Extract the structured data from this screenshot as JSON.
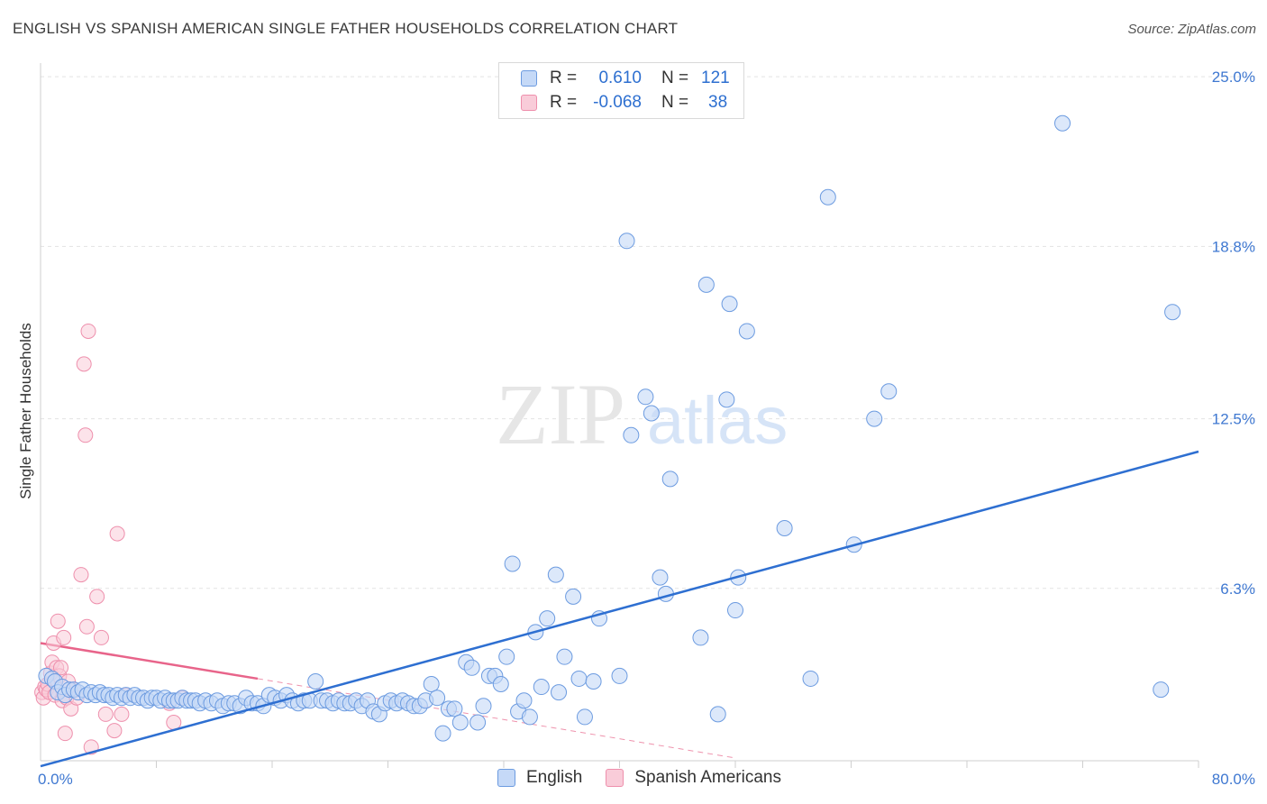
{
  "title": "ENGLISH VS SPANISH AMERICAN SINGLE FATHER HOUSEHOLDS CORRELATION CHART",
  "source": "Source: ZipAtlas.com",
  "watermark": {
    "zip": "ZIP",
    "atlas": "atlas"
  },
  "legend": {
    "english": {
      "r_label": "R =",
      "r_value": "0.610",
      "n_label": "N =",
      "n_value": "121"
    },
    "spanish": {
      "r_label": "R =",
      "r_value": "-0.068",
      "n_label": "N =",
      "n_value": "38"
    }
  },
  "bottom_legend": {
    "english": "English",
    "spanish": "Spanish Americans"
  },
  "colors": {
    "english_fill": "#c5d9f7",
    "english_stroke": "#6c9be0",
    "english_line": "#2e6fd1",
    "spanish_fill": "#f9ccd9",
    "spanish_stroke": "#ee8fac",
    "spanish_line": "#e8648a",
    "tick_label": "#3f78d1",
    "grid": "#e3e3e3"
  },
  "chart_data": {
    "type": "scatter",
    "title": "ENGLISH VS SPANISH AMERICAN SINGLE FATHER HOUSEHOLDS CORRELATION CHART",
    "xlabel": "",
    "ylabel": "Single Father Households",
    "xlim": [
      0,
      80
    ],
    "ylim": [
      0,
      25.5
    ],
    "x_tick_labels": [
      "0.0%",
      "80.0%"
    ],
    "y_ticks": [
      {
        "value": 6.3,
        "label": "6.3%"
      },
      {
        "value": 12.5,
        "label": "12.5%"
      },
      {
        "value": 18.8,
        "label": "18.8%"
      },
      {
        "value": 25.0,
        "label": "25.0%"
      }
    ],
    "grid": true,
    "series": [
      {
        "name": "English",
        "R": 0.61,
        "N": 121,
        "trend": {
          "x": [
            0,
            80
          ],
          "y": [
            -0.2,
            11.3
          ]
        },
        "points": [
          [
            0.4,
            3.1
          ],
          [
            0.8,
            3.0
          ],
          [
            1.0,
            2.9
          ],
          [
            1.2,
            2.5
          ],
          [
            1.5,
            2.7
          ],
          [
            1.7,
            2.4
          ],
          [
            2.0,
            2.6
          ],
          [
            2.3,
            2.6
          ],
          [
            2.6,
            2.5
          ],
          [
            2.9,
            2.6
          ],
          [
            3.2,
            2.4
          ],
          [
            3.5,
            2.5
          ],
          [
            3.8,
            2.4
          ],
          [
            4.1,
            2.5
          ],
          [
            4.4,
            2.4
          ],
          [
            4.7,
            2.4
          ],
          [
            5.0,
            2.3
          ],
          [
            5.3,
            2.4
          ],
          [
            5.6,
            2.3
          ],
          [
            5.9,
            2.4
          ],
          [
            6.2,
            2.3
          ],
          [
            6.5,
            2.4
          ],
          [
            6.8,
            2.3
          ],
          [
            7.1,
            2.3
          ],
          [
            7.4,
            2.2
          ],
          [
            7.7,
            2.3
          ],
          [
            8.0,
            2.3
          ],
          [
            8.3,
            2.2
          ],
          [
            8.6,
            2.3
          ],
          [
            8.9,
            2.2
          ],
          [
            9.2,
            2.2
          ],
          [
            9.5,
            2.2
          ],
          [
            9.8,
            2.3
          ],
          [
            10.1,
            2.2
          ],
          [
            10.4,
            2.2
          ],
          [
            10.7,
            2.2
          ],
          [
            11.0,
            2.1
          ],
          [
            11.4,
            2.2
          ],
          [
            11.8,
            2.1
          ],
          [
            12.2,
            2.2
          ],
          [
            12.6,
            2.0
          ],
          [
            13.0,
            2.1
          ],
          [
            13.4,
            2.1
          ],
          [
            13.8,
            2.0
          ],
          [
            14.2,
            2.3
          ],
          [
            14.6,
            2.1
          ],
          [
            15.0,
            2.1
          ],
          [
            15.4,
            2.0
          ],
          [
            15.8,
            2.4
          ],
          [
            16.2,
            2.3
          ],
          [
            16.6,
            2.2
          ],
          [
            17.0,
            2.4
          ],
          [
            17.4,
            2.2
          ],
          [
            17.8,
            2.1
          ],
          [
            18.2,
            2.2
          ],
          [
            18.6,
            2.2
          ],
          [
            19.0,
            2.9
          ],
          [
            19.4,
            2.2
          ],
          [
            19.8,
            2.2
          ],
          [
            20.2,
            2.1
          ],
          [
            20.6,
            2.2
          ],
          [
            21.0,
            2.1
          ],
          [
            21.4,
            2.1
          ],
          [
            21.8,
            2.2
          ],
          [
            22.2,
            2.0
          ],
          [
            22.6,
            2.2
          ],
          [
            23.0,
            1.8
          ],
          [
            23.4,
            1.7
          ],
          [
            23.8,
            2.1
          ],
          [
            24.2,
            2.2
          ],
          [
            24.6,
            2.1
          ],
          [
            25.0,
            2.2
          ],
          [
            25.4,
            2.1
          ],
          [
            25.8,
            2.0
          ],
          [
            26.2,
            2.0
          ],
          [
            26.6,
            2.2
          ],
          [
            27.0,
            2.8
          ],
          [
            27.4,
            2.3
          ],
          [
            27.8,
            1.0
          ],
          [
            28.2,
            1.9
          ],
          [
            28.6,
            1.9
          ],
          [
            29.0,
            1.4
          ],
          [
            29.4,
            3.6
          ],
          [
            29.8,
            3.4
          ],
          [
            30.2,
            1.4
          ],
          [
            30.6,
            2.0
          ],
          [
            31.0,
            3.1
          ],
          [
            31.4,
            3.1
          ],
          [
            31.8,
            2.8
          ],
          [
            32.2,
            3.8
          ],
          [
            32.6,
            7.2
          ],
          [
            33.0,
            1.8
          ],
          [
            33.4,
            2.2
          ],
          [
            33.8,
            1.6
          ],
          [
            34.2,
            4.7
          ],
          [
            34.6,
            2.7
          ],
          [
            35.0,
            5.2
          ],
          [
            35.6,
            6.8
          ],
          [
            35.8,
            2.5
          ],
          [
            36.2,
            3.8
          ],
          [
            36.8,
            6.0
          ],
          [
            37.2,
            3.0
          ],
          [
            37.6,
            1.6
          ],
          [
            38.2,
            2.9
          ],
          [
            38.6,
            5.2
          ],
          [
            40.0,
            3.1
          ],
          [
            40.5,
            19.0
          ],
          [
            40.8,
            11.9
          ],
          [
            41.8,
            13.3
          ],
          [
            42.2,
            12.7
          ],
          [
            42.8,
            6.7
          ],
          [
            43.2,
            6.1
          ],
          [
            43.5,
            10.3
          ],
          [
            45.6,
            4.5
          ],
          [
            46.0,
            17.4
          ],
          [
            46.8,
            1.7
          ],
          [
            47.4,
            13.2
          ],
          [
            47.6,
            16.7
          ],
          [
            48.0,
            5.5
          ],
          [
            48.2,
            6.7
          ],
          [
            48.8,
            15.7
          ],
          [
            51.4,
            8.5
          ],
          [
            53.2,
            3.0
          ],
          [
            54.4,
            20.6
          ],
          [
            56.2,
            7.9
          ],
          [
            57.6,
            12.5
          ],
          [
            58.6,
            13.5
          ],
          [
            70.6,
            23.3
          ],
          [
            77.4,
            2.6
          ],
          [
            78.2,
            16.4
          ]
        ]
      },
      {
        "name": "Spanish Americans",
        "R": -0.068,
        "N": 38,
        "trend": {
          "x": [
            0,
            15
          ],
          "y": [
            4.3,
            3.0
          ]
        },
        "trend_extension": {
          "x": [
            15,
            48
          ],
          "y": [
            3.0,
            0.1
          ]
        },
        "points": [
          [
            0.1,
            2.5
          ],
          [
            0.2,
            2.3
          ],
          [
            0.3,
            2.7
          ],
          [
            0.4,
            2.6
          ],
          [
            0.5,
            2.8
          ],
          [
            0.6,
            2.5
          ],
          [
            0.7,
            3.2
          ],
          [
            0.8,
            3.6
          ],
          [
            0.9,
            4.3
          ],
          [
            1.0,
            2.4
          ],
          [
            1.1,
            3.4
          ],
          [
            1.2,
            5.1
          ],
          [
            1.3,
            3.1
          ],
          [
            1.4,
            3.4
          ],
          [
            1.5,
            2.2
          ],
          [
            1.6,
            4.5
          ],
          [
            1.7,
            1.0
          ],
          [
            1.8,
            2.3
          ],
          [
            1.9,
            2.9
          ],
          [
            2.1,
            1.9
          ],
          [
            2.3,
            2.6
          ],
          [
            2.5,
            2.3
          ],
          [
            2.8,
            6.8
          ],
          [
            3.0,
            14.5
          ],
          [
            3.1,
            11.9
          ],
          [
            3.2,
            4.9
          ],
          [
            3.3,
            15.7
          ],
          [
            3.5,
            0.5
          ],
          [
            3.9,
            6.0
          ],
          [
            4.2,
            4.5
          ],
          [
            4.5,
            1.7
          ],
          [
            5.1,
            1.1
          ],
          [
            5.3,
            8.3
          ],
          [
            5.6,
            1.7
          ],
          [
            5.9,
            2.4
          ],
          [
            8.9,
            2.1
          ],
          [
            9.2,
            1.4
          ],
          [
            9.8,
            2.3
          ]
        ]
      }
    ]
  }
}
